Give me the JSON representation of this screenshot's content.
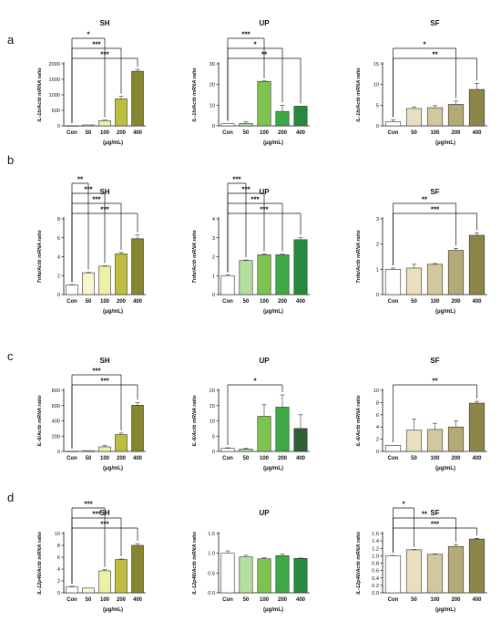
{
  "panels": [
    "a",
    "b",
    "c",
    "d"
  ],
  "chart_data": [
    {
      "type": "bar",
      "title": "SH",
      "ylabel": "IL-1b/Actb mRNA ratio",
      "xlabel": "(μg/mL)",
      "categories": [
        "Con",
        "50",
        "100",
        "200",
        "400"
      ],
      "values": [
        1,
        30,
        170,
        870,
        1760
      ],
      "errors": [
        5,
        10,
        20,
        80,
        60
      ],
      "ylim": [
        0,
        2000
      ],
      "yticks": [
        "0",
        "500",
        "1000",
        "1500",
        "2000"
      ],
      "colors": [
        "#ffffff",
        "#f8f5cf",
        "#eef0a6",
        "#bcbe3f",
        "#868630"
      ],
      "significance": [
        {
          "from": 0,
          "to": 2,
          "label": "*"
        },
        {
          "from": 0,
          "to": 3,
          "label": "***"
        },
        {
          "from": 0,
          "to": 4,
          "label": "***"
        }
      ]
    },
    {
      "type": "bar",
      "title": "UP",
      "ylabel": "IL-1b/Actb mRNA ratio",
      "xlabel": "(μg/mL)",
      "categories": [
        "Con",
        "50",
        "100",
        "200",
        "400"
      ],
      "values": [
        1,
        1.2,
        21.5,
        7,
        9.5
      ],
      "errors": [
        0.1,
        0.8,
        0.2,
        3,
        0.1
      ],
      "ylim": [
        0,
        30
      ],
      "yticks": [
        "0",
        "10",
        "20",
        "30"
      ],
      "colors": [
        "#ffffff",
        "#b6dea0",
        "#7dc34f",
        "#3ea845",
        "#268a3e"
      ],
      "significance": [
        {
          "from": 0,
          "to": 2,
          "label": "***"
        },
        {
          "from": 0,
          "to": 3,
          "label": "*"
        },
        {
          "from": 0,
          "to": 4,
          "label": "**"
        }
      ]
    },
    {
      "type": "bar",
      "title": "SF",
      "ylabel": "IL-1b/Actb mRNA ratio",
      "xlabel": "(μg/mL)",
      "categories": [
        "Con",
        "50",
        "100",
        "200",
        "400"
      ],
      "values": [
        1,
        4.2,
        4.4,
        5.2,
        8.8
      ],
      "errors": [
        0.5,
        0.4,
        0.5,
        0.8,
        1.5
      ],
      "ylim": [
        0,
        15
      ],
      "yticks": [
        "0",
        "5",
        "10",
        "15"
      ],
      "colors": [
        "#ffffff",
        "#e9dfc0",
        "#d3c79d",
        "#b3aa77",
        "#8e8649"
      ],
      "significance": [
        {
          "from": 0,
          "to": 3,
          "label": "*"
        },
        {
          "from": 0,
          "to": 4,
          "label": "**"
        }
      ]
    },
    {
      "type": "bar",
      "title": "SH",
      "ylabel": "Tnfα/Actb mRNA ratio",
      "xlabel": "(μg/mL)",
      "categories": [
        "Con",
        "50",
        "100",
        "200",
        "400"
      ],
      "values": [
        1,
        2.3,
        3,
        4.3,
        5.9
      ],
      "errors": [
        0.05,
        0.05,
        0.05,
        0.15,
        0.4
      ],
      "ylim": [
        0,
        8
      ],
      "yticks": [
        "0",
        "2",
        "4",
        "6",
        "8"
      ],
      "colors": [
        "#ffffff",
        "#f8f5cf",
        "#eef0a6",
        "#bcbe3f",
        "#868630"
      ],
      "significance": [
        {
          "from": 0,
          "to": 1,
          "label": "**"
        },
        {
          "from": 0,
          "to": 2,
          "label": "***"
        },
        {
          "from": 0,
          "to": 3,
          "label": "***"
        },
        {
          "from": 0,
          "to": 4,
          "label": "***"
        }
      ]
    },
    {
      "type": "bar",
      "title": "UP",
      "ylabel": "Tnfα/Actb mRNA ratio",
      "xlabel": "(μg/mL)",
      "categories": [
        "Con",
        "50",
        "100",
        "200",
        "400"
      ],
      "values": [
        1,
        1.8,
        2.1,
        2.1,
        2.9
      ],
      "errors": [
        0.05,
        0.03,
        0.04,
        0.04,
        0.1
      ],
      "ylim": [
        0,
        4
      ],
      "yticks": [
        "0",
        "1",
        "2",
        "3",
        "4"
      ],
      "colors": [
        "#ffffff",
        "#b6dea0",
        "#7dc34f",
        "#3ea845",
        "#268a3e"
      ],
      "significance": [
        {
          "from": 0,
          "to": 1,
          "label": "***"
        },
        {
          "from": 0,
          "to": 2,
          "label": "***"
        },
        {
          "from": 0,
          "to": 3,
          "label": "***"
        },
        {
          "from": 0,
          "to": 4,
          "label": "***"
        }
      ]
    },
    {
      "type": "bar",
      "title": "SF",
      "ylabel": "Tnfα/Actb mRNA ratio",
      "xlabel": "(μg/mL)",
      "categories": [
        "Con",
        "50",
        "100",
        "200",
        "400"
      ],
      "values": [
        1,
        1.05,
        1.2,
        1.75,
        2.35
      ],
      "errors": [
        0.05,
        0.15,
        0.03,
        0.08,
        0.1
      ],
      "ylim": [
        0,
        3
      ],
      "yticks": [
        "0",
        "1",
        "2",
        "3"
      ],
      "colors": [
        "#ffffff",
        "#e9dfc0",
        "#d3c79d",
        "#b3aa77",
        "#8e8649"
      ],
      "significance": [
        {
          "from": 0,
          "to": 3,
          "label": "**"
        },
        {
          "from": 0,
          "to": 4,
          "label": "***"
        }
      ]
    },
    {
      "type": "bar",
      "title": "SH",
      "ylabel": "IL-6/Actb mRNA ratio",
      "xlabel": "(μg/mL)",
      "categories": [
        "Con",
        "50",
        "100",
        "200",
        "400"
      ],
      "values": [
        1,
        10,
        60,
        220,
        605
      ],
      "errors": [
        1,
        2,
        15,
        20,
        35
      ],
      "ylim": [
        0,
        800
      ],
      "yticks": [
        "0",
        "200",
        "400",
        "600",
        "800"
      ],
      "colors": [
        "#ffffff",
        "#f8f5cf",
        "#eef0a6",
        "#bcbe3f",
        "#868630"
      ],
      "significance": [
        {
          "from": 0,
          "to": 3,
          "label": "***"
        },
        {
          "from": 0,
          "to": 4,
          "label": "***"
        }
      ]
    },
    {
      "type": "bar",
      "title": "UP",
      "ylabel": "IL-6/Actb mRNA ratio",
      "xlabel": "(μg/mL)",
      "categories": [
        "Con",
        "50",
        "100",
        "200",
        "400"
      ],
      "values": [
        1,
        0.8,
        11.5,
        14.5,
        7.5
      ],
      "errors": [
        0.2,
        0.3,
        3.8,
        4,
        4.5
      ],
      "ylim": [
        0,
        20
      ],
      "yticks": [
        "0",
        "5",
        "10",
        "15",
        "20"
      ],
      "colors": [
        "#ffffff",
        "#b6dea0",
        "#7dc34f",
        "#3ea845",
        "#2f5f34"
      ],
      "significance": [
        {
          "from": 0,
          "to": 3,
          "label": "*"
        }
      ]
    },
    {
      "type": "bar",
      "title": "SF",
      "ylabel": "IL-6/Actb mRNA ratio",
      "xlabel": "(μg/mL)",
      "categories": [
        "Con",
        "50",
        "100",
        "200",
        "400"
      ],
      "values": [
        1,
        3.5,
        3.6,
        4,
        7.9
      ],
      "errors": [
        0.05,
        1.8,
        1.0,
        1.0,
        0.3
      ],
      "ylim": [
        0,
        10
      ],
      "yticks": [
        "0",
        "2",
        "4",
        "6",
        "8",
        "10"
      ],
      "colors": [
        "#ffffff",
        "#e9dfc0",
        "#d3c79d",
        "#b3aa77",
        "#8e8649"
      ],
      "significance": [
        {
          "from": 0,
          "to": 4,
          "label": "**"
        }
      ]
    },
    {
      "type": "bar",
      "title": "SH",
      "ylabel": "IL-12p40/Actb mRNA ratio",
      "xlabel": "(μg/mL)",
      "categories": [
        "Con",
        "50",
        "100",
        "200",
        "400"
      ],
      "values": [
        1,
        0.8,
        3.7,
        5.6,
        8
      ],
      "errors": [
        0.1,
        0.05,
        0.2,
        0.1,
        0.3
      ],
      "ylim": [
        0,
        10
      ],
      "yticks": [
        "0",
        "2",
        "4",
        "6",
        "8",
        "10"
      ],
      "colors": [
        "#ffffff",
        "#f8f5cf",
        "#eef0a6",
        "#bcbe3f",
        "#868630"
      ],
      "significance": [
        {
          "from": 0,
          "to": 2,
          "label": "***"
        },
        {
          "from": 0,
          "to": 3,
          "label": "***"
        },
        {
          "from": 0,
          "to": 4,
          "label": "***"
        }
      ]
    },
    {
      "type": "bar",
      "title": "UP",
      "ylabel": "IL-12p40/Actb mRNA ratio",
      "xlabel": "(μg/mL)",
      "categories": [
        "Con",
        "50",
        "100",
        "200",
        "400"
      ],
      "values": [
        1,
        0.91,
        0.86,
        0.94,
        0.87
      ],
      "errors": [
        0.06,
        0.04,
        0.03,
        0.04,
        0.01
      ],
      "ylim": [
        0,
        1.5
      ],
      "yticks": [
        "0.0",
        "0.5",
        "1.0",
        "1.5"
      ],
      "colors": [
        "#ffffff",
        "#b6dea0",
        "#7dc34f",
        "#3ea845",
        "#268a3e"
      ],
      "significance": []
    },
    {
      "type": "bar",
      "title": "SF",
      "ylabel": "IL-12p40/Actb mRNA ratio",
      "xlabel": "(μg/mL)",
      "categories": [
        "Con",
        "50",
        "100",
        "200",
        "400"
      ],
      "values": [
        1,
        1.16,
        1.04,
        1.25,
        1.45
      ],
      "errors": [
        0.01,
        0.01,
        0.01,
        0.05,
        0.02
      ],
      "ylim": [
        0,
        1.6
      ],
      "yticks": [
        "0.0",
        "0.2",
        "0.4",
        "0.6",
        "0.8",
        "1.0",
        "1.2",
        "1.4",
        "1.6"
      ],
      "colors": [
        "#ffffff",
        "#e9dfc0",
        "#d3c79d",
        "#b3aa77",
        "#8e8649"
      ],
      "significance": [
        {
          "from": 0,
          "to": 1,
          "label": "*"
        },
        {
          "from": 0,
          "to": 3,
          "label": "**"
        },
        {
          "from": 0,
          "to": 4,
          "label": "***"
        }
      ]
    }
  ]
}
